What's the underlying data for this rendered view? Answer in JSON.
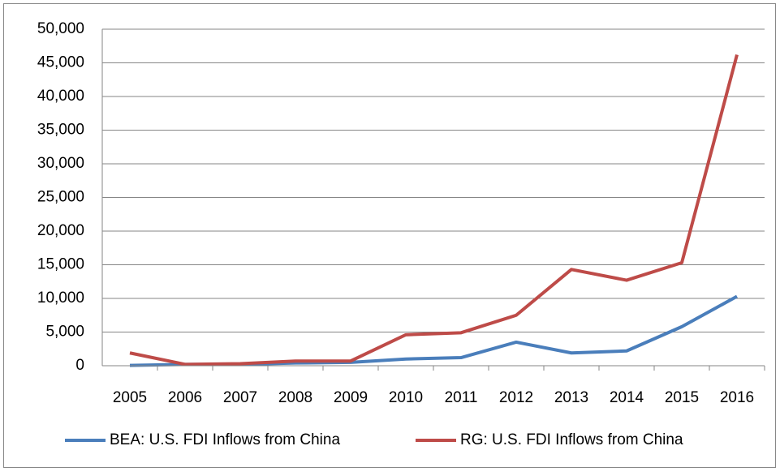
{
  "chart_data": {
    "type": "line",
    "categories": [
      "2005",
      "2006",
      "2007",
      "2008",
      "2009",
      "2010",
      "2011",
      "2012",
      "2013",
      "2014",
      "2015",
      "2016"
    ],
    "series": [
      {
        "name": "BEA: U.S. FDI Inflows from China",
        "color": "#4a7ebb",
        "values": [
          50,
          200,
          200,
          400,
          500,
          1000,
          1200,
          3500,
          1900,
          2200,
          5800,
          10300
        ]
      },
      {
        "name": "RG: U.S. FDI Inflows from China",
        "color": "#be4b48",
        "values": [
          1900,
          200,
          300,
          700,
          700,
          4600,
          4900,
          7500,
          14300,
          12700,
          15300,
          46200
        ]
      }
    ],
    "ylim": [
      0,
      50000
    ],
    "yticks": [
      0,
      {
        "value": 5000,
        "label": "5,000"
      },
      {
        "value": 10000,
        "label": "10,000"
      },
      {
        "value": 15000,
        "label": "15,000"
      },
      {
        "value": 20000,
        "label": "20,000"
      },
      {
        "value": 25000,
        "label": "25,000"
      },
      {
        "value": 30000,
        "label": "30,000"
      },
      {
        "value": 35000,
        "label": "35,000"
      },
      {
        "value": 40000,
        "label": "40,000"
      },
      {
        "value": 45000,
        "label": "45,000"
      },
      {
        "value": 50000,
        "label": "50,000"
      }
    ],
    "grid": true,
    "legend": "bottom"
  }
}
